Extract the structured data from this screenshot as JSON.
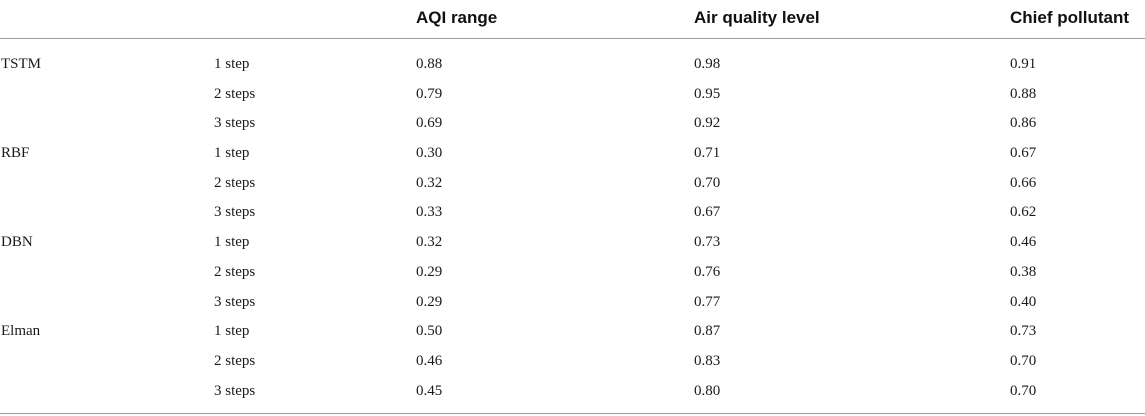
{
  "table": {
    "headers": {
      "model": "",
      "step": "",
      "aqi": "AQI range",
      "level": "Air quality level",
      "pollutant": "Chief pollutant"
    },
    "rows": [
      {
        "model": "TSTM",
        "step": "1 step",
        "aqi": "0.88",
        "level": "0.98",
        "pollutant": "0.91"
      },
      {
        "model": "",
        "step": "2 steps",
        "aqi": "0.79",
        "level": "0.95",
        "pollutant": "0.88"
      },
      {
        "model": "",
        "step": "3 steps",
        "aqi": "0.69",
        "level": "0.92",
        "pollutant": "0.86"
      },
      {
        "model": "RBF",
        "step": "1 step",
        "aqi": "0.30",
        "level": "0.71",
        "pollutant": "0.67"
      },
      {
        "model": "",
        "step": "2 steps",
        "aqi": "0.32",
        "level": "0.70",
        "pollutant": "0.66"
      },
      {
        "model": "",
        "step": "3 steps",
        "aqi": "0.33",
        "level": "0.67",
        "pollutant": "0.62"
      },
      {
        "model": "DBN",
        "step": "1 step",
        "aqi": "0.32",
        "level": "0.73",
        "pollutant": "0.46"
      },
      {
        "model": "",
        "step": "2 steps",
        "aqi": "0.29",
        "level": "0.76",
        "pollutant": "0.38"
      },
      {
        "model": "",
        "step": "3 steps",
        "aqi": "0.29",
        "level": "0.77",
        "pollutant": "0.40"
      },
      {
        "model": "Elman",
        "step": "1 step",
        "aqi": "0.50",
        "level": "0.87",
        "pollutant": "0.73"
      },
      {
        "model": "",
        "step": "2 steps",
        "aqi": "0.46",
        "level": "0.83",
        "pollutant": "0.70"
      },
      {
        "model": "",
        "step": "3 steps",
        "aqi": "0.45",
        "level": "0.80",
        "pollutant": "0.70"
      }
    ]
  }
}
